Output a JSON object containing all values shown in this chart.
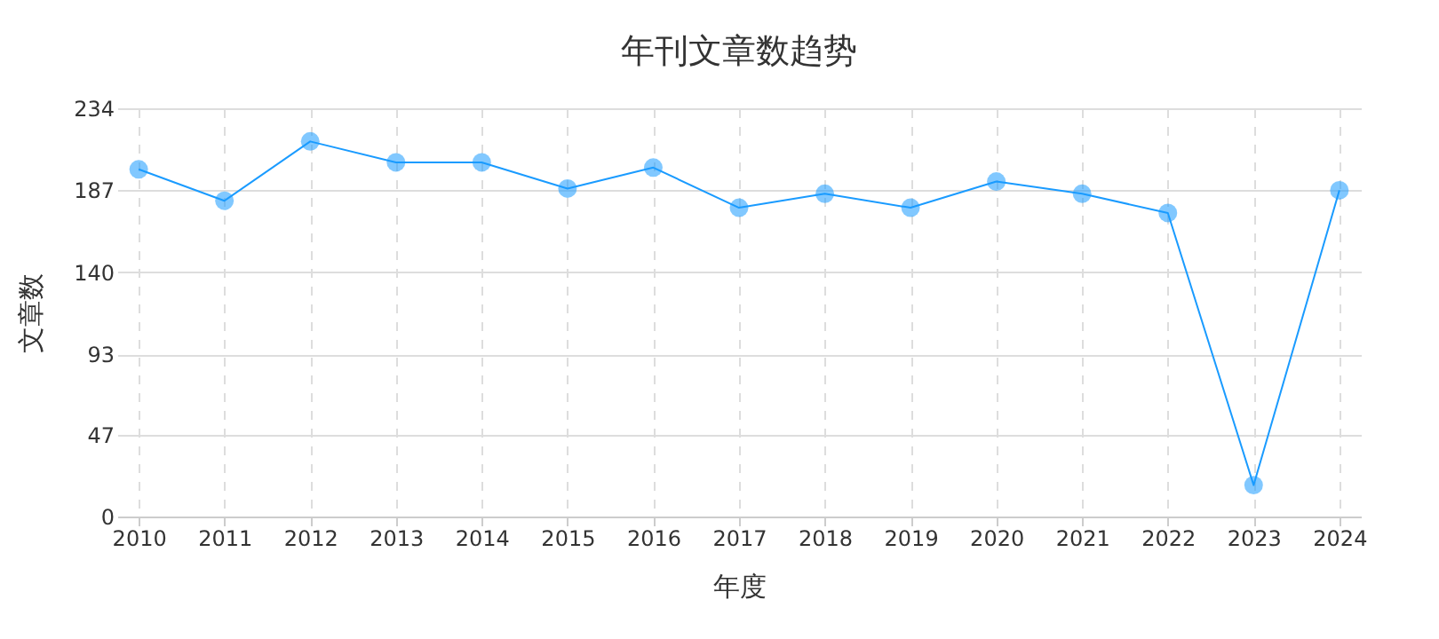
{
  "chart_data": {
    "type": "line",
    "title": "年刊文章数趋势",
    "xlabel": "年度",
    "ylabel": "文章数",
    "categories": [
      "2010",
      "2011",
      "2012",
      "2013",
      "2014",
      "2015",
      "2016",
      "2017",
      "2018",
      "2019",
      "2020",
      "2021",
      "2022",
      "2023",
      "2024"
    ],
    "series": [
      {
        "color": "#1a9bff",
        "values": [
          199,
          181,
          215,
          203,
          203,
          188,
          200,
          177,
          185,
          177,
          192,
          185,
          174,
          18,
          187
        ]
      }
    ],
    "ylim": [
      0,
      234
    ],
    "yticks": [
      0,
      47,
      93,
      140,
      187,
      234
    ],
    "grid": true,
    "marker": "circle",
    "line_style": "solid"
  }
}
